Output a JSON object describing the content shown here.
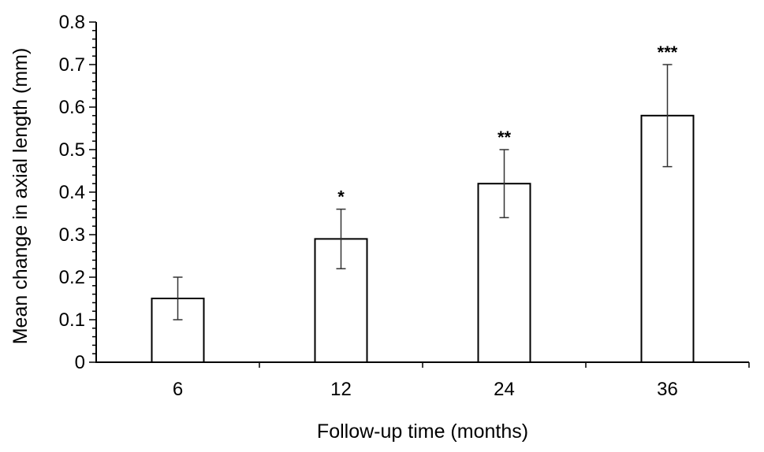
{
  "chart_data": {
    "type": "bar",
    "categories": [
      "6",
      "12",
      "24",
      "36"
    ],
    "values": [
      0.15,
      0.29,
      0.42,
      0.58
    ],
    "error": [
      0.05,
      0.07,
      0.08,
      0.12
    ],
    "significance": [
      "",
      "*",
      "**",
      "***"
    ],
    "xlabel": "Follow-up time (months)",
    "ylabel": "Mean change in axial length (mm)",
    "ylim": [
      0,
      0.8
    ],
    "yticks": [
      "0",
      "0.1",
      "0.2",
      "0.3",
      "0.4",
      "0.5",
      "0.6",
      "0.7",
      "0.8"
    ],
    "grid": false,
    "colors": {
      "bar_fill": "#ffffff",
      "bar_stroke": "#000000",
      "error_bar": "#333333"
    }
  }
}
